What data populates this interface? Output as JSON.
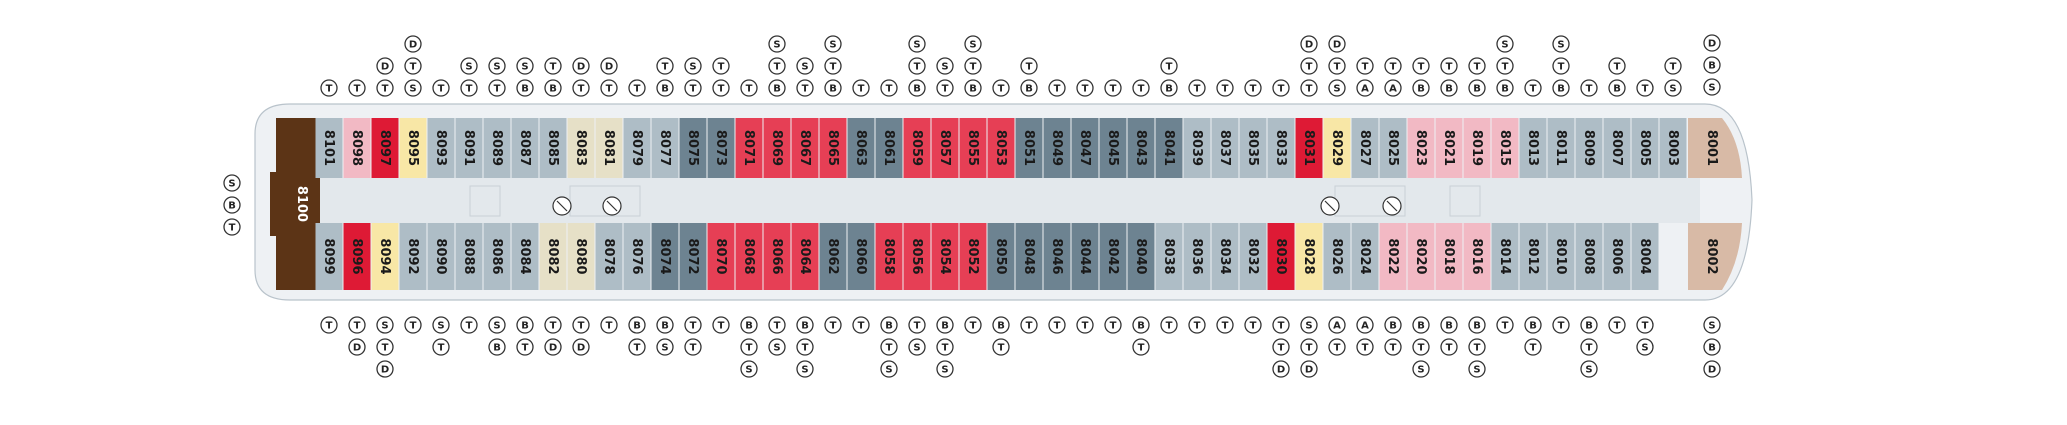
{
  "colors": {
    "light_blue": "#aebdc6",
    "dark_blue": "#6d8391",
    "red": "#de1a35",
    "pink_red": "#e63f55",
    "light_pink": "#f2b9c4",
    "yellow": "#f8e7a6",
    "beige": "#e6e0c7",
    "tan": "#d8baa6",
    "brown": "#5c3416",
    "hull": "#eef1f4",
    "corridor": "#e3e8ec"
  },
  "legend_left": [
    "S",
    "B",
    "T"
  ],
  "cabin_8100": "8100",
  "top_cabins": [
    {
      "num": "8101",
      "color": "light_blue",
      "sym": [
        "T"
      ]
    },
    {
      "num": "8098",
      "color": "light_pink",
      "sym": [
        "T"
      ]
    },
    {
      "num": "8097",
      "color": "red",
      "sym": [
        "T",
        "D"
      ]
    },
    {
      "num": "8095",
      "color": "yellow",
      "sym": [
        "S",
        "T",
        "D"
      ]
    },
    {
      "num": "8093",
      "color": "light_blue",
      "sym": [
        "T"
      ]
    },
    {
      "num": "8091",
      "color": "light_blue",
      "sym": [
        "T",
        "S"
      ]
    },
    {
      "num": "8089",
      "color": "light_blue",
      "sym": [
        "T",
        "S"
      ]
    },
    {
      "num": "8087",
      "color": "light_blue",
      "sym": [
        "B",
        "S"
      ]
    },
    {
      "num": "8085",
      "color": "light_blue",
      "sym": [
        "B",
        "T"
      ]
    },
    {
      "num": "8083",
      "color": "beige",
      "sym": [
        "T",
        "D"
      ]
    },
    {
      "num": "8081",
      "color": "beige",
      "sym": [
        "T",
        "D"
      ]
    },
    {
      "num": "8079",
      "color": "light_blue",
      "sym": [
        "T"
      ]
    },
    {
      "num": "8077",
      "color": "light_blue",
      "sym": [
        "B",
        "T"
      ]
    },
    {
      "num": "8075",
      "color": "dark_blue",
      "sym": [
        "T",
        "S"
      ]
    },
    {
      "num": "8073",
      "color": "dark_blue",
      "sym": [
        "T",
        "T"
      ]
    },
    {
      "num": "8071",
      "color": "pink_red",
      "sym": [
        "T"
      ]
    },
    {
      "num": "8069",
      "color": "pink_red",
      "sym": [
        "B",
        "T",
        "S"
      ]
    },
    {
      "num": "8067",
      "color": "pink_red",
      "sym": [
        "T",
        "S"
      ]
    },
    {
      "num": "8065",
      "color": "pink_red",
      "sym": [
        "B",
        "T",
        "S"
      ]
    },
    {
      "num": "8063",
      "color": "dark_blue",
      "sym": [
        "T"
      ]
    },
    {
      "num": "8061",
      "color": "dark_blue",
      "sym": [
        "T"
      ]
    },
    {
      "num": "8059",
      "color": "pink_red",
      "sym": [
        "B",
        "T",
        "S"
      ]
    },
    {
      "num": "8057",
      "color": "pink_red",
      "sym": [
        "T",
        "S"
      ]
    },
    {
      "num": "8055",
      "color": "pink_red",
      "sym": [
        "B",
        "T",
        "S"
      ]
    },
    {
      "num": "8053",
      "color": "pink_red",
      "sym": [
        "T"
      ]
    },
    {
      "num": "8051",
      "color": "dark_blue",
      "sym": [
        "B",
        "T"
      ]
    },
    {
      "num": "8049",
      "color": "dark_blue",
      "sym": [
        "T"
      ]
    },
    {
      "num": "8047",
      "color": "dark_blue",
      "sym": [
        "T"
      ]
    },
    {
      "num": "8045",
      "color": "dark_blue",
      "sym": [
        "T"
      ]
    },
    {
      "num": "8043",
      "color": "dark_blue",
      "sym": [
        "T"
      ]
    },
    {
      "num": "8041",
      "color": "dark_blue",
      "sym": [
        "B",
        "T"
      ]
    },
    {
      "num": "8039",
      "color": "light_blue",
      "sym": [
        "T"
      ]
    },
    {
      "num": "8037",
      "color": "light_blue",
      "sym": [
        "T"
      ]
    },
    {
      "num": "8035",
      "color": "light_blue",
      "sym": [
        "T"
      ]
    },
    {
      "num": "8033",
      "color": "light_blue",
      "sym": [
        "T"
      ]
    },
    {
      "num": "8031",
      "color": "red",
      "sym": [
        "T",
        "T",
        "D"
      ]
    },
    {
      "num": "8029",
      "color": "yellow",
      "sym": [
        "S",
        "T",
        "D"
      ]
    },
    {
      "num": "8027",
      "color": "light_blue",
      "sym": [
        "A",
        "T"
      ]
    },
    {
      "num": "8025",
      "color": "light_blue",
      "sym": [
        "A",
        "T"
      ]
    },
    {
      "num": "8023",
      "color": "light_pink",
      "sym": [
        "B",
        "T"
      ]
    },
    {
      "num": "8021",
      "color": "light_pink",
      "sym": [
        "B",
        "T"
      ]
    },
    {
      "num": "8019",
      "color": "light_pink",
      "sym": [
        "B",
        "T"
      ]
    },
    {
      "num": "8015",
      "color": "light_pink",
      "sym": [
        "B",
        "T",
        "S"
      ]
    },
    {
      "num": "8013",
      "color": "light_blue",
      "sym": [
        "T"
      ]
    },
    {
      "num": "8011",
      "color": "light_blue",
      "sym": [
        "B",
        "T",
        "S"
      ]
    },
    {
      "num": "8009",
      "color": "light_blue",
      "sym": [
        "T"
      ]
    },
    {
      "num": "8007",
      "color": "light_blue",
      "sym": [
        "B",
        "T"
      ]
    },
    {
      "num": "8005",
      "color": "light_blue",
      "sym": [
        "T"
      ]
    },
    {
      "num": "8003",
      "color": "light_blue",
      "sym": [
        "S",
        "T"
      ]
    }
  ],
  "bottom_cabins": [
    {
      "num": "8099",
      "color": "light_blue",
      "sym": [
        "T"
      ]
    },
    {
      "num": "8096",
      "color": "red",
      "sym": [
        "T",
        "D"
      ]
    },
    {
      "num": "8094",
      "color": "yellow",
      "sym": [
        "S",
        "T",
        "D"
      ]
    },
    {
      "num": "8092",
      "color": "light_blue",
      "sym": [
        "T"
      ]
    },
    {
      "num": "8090",
      "color": "light_blue",
      "sym": [
        "S",
        "T"
      ]
    },
    {
      "num": "8088",
      "color": "light_blue",
      "sym": [
        "T"
      ]
    },
    {
      "num": "8086",
      "color": "light_blue",
      "sym": [
        "S",
        "B"
      ]
    },
    {
      "num": "8084",
      "color": "light_blue",
      "sym": [
        "B",
        "T"
      ]
    },
    {
      "num": "8082",
      "color": "beige",
      "sym": [
        "T",
        "D"
      ]
    },
    {
      "num": "8080",
      "color": "beige",
      "sym": [
        "T",
        "D"
      ]
    },
    {
      "num": "8078",
      "color": "light_blue",
      "sym": [
        "T"
      ]
    },
    {
      "num": "8076",
      "color": "light_blue",
      "sym": [
        "B",
        "T"
      ]
    },
    {
      "num": "8074",
      "color": "dark_blue",
      "sym": [
        "B",
        "S"
      ]
    },
    {
      "num": "8072",
      "color": "dark_blue",
      "sym": [
        "T",
        "T"
      ]
    },
    {
      "num": "8070",
      "color": "pink_red",
      "sym": [
        "T"
      ]
    },
    {
      "num": "8068",
      "color": "pink_red",
      "sym": [
        "B",
        "T",
        "S"
      ]
    },
    {
      "num": "8066",
      "color": "pink_red",
      "sym": [
        "T",
        "S"
      ]
    },
    {
      "num": "8064",
      "color": "pink_red",
      "sym": [
        "B",
        "T",
        "S"
      ]
    },
    {
      "num": "8062",
      "color": "dark_blue",
      "sym": [
        "T"
      ]
    },
    {
      "num": "8060",
      "color": "dark_blue",
      "sym": [
        "T"
      ]
    },
    {
      "num": "8058",
      "color": "pink_red",
      "sym": [
        "B",
        "T",
        "S"
      ]
    },
    {
      "num": "8056",
      "color": "pink_red",
      "sym": [
        "T",
        "S"
      ]
    },
    {
      "num": "8054",
      "color": "pink_red",
      "sym": [
        "B",
        "T",
        "S"
      ]
    },
    {
      "num": "8052",
      "color": "pink_red",
      "sym": [
        "T"
      ]
    },
    {
      "num": "8050",
      "color": "dark_blue",
      "sym": [
        "B",
        "T"
      ]
    },
    {
      "num": "8048",
      "color": "dark_blue",
      "sym": [
        "T"
      ]
    },
    {
      "num": "8046",
      "color": "dark_blue",
      "sym": [
        "T"
      ]
    },
    {
      "num": "8044",
      "color": "dark_blue",
      "sym": [
        "T"
      ]
    },
    {
      "num": "8042",
      "color": "dark_blue",
      "sym": [
        "T"
      ]
    },
    {
      "num": "8040",
      "color": "dark_blue",
      "sym": [
        "B",
        "T"
      ]
    },
    {
      "num": "8038",
      "color": "light_blue",
      "sym": [
        "T"
      ]
    },
    {
      "num": "8036",
      "color": "light_blue",
      "sym": [
        "T"
      ]
    },
    {
      "num": "8034",
      "color": "light_blue",
      "sym": [
        "T"
      ]
    },
    {
      "num": "8032",
      "color": "light_blue",
      "sym": [
        "T"
      ]
    },
    {
      "num": "8030",
      "color": "red",
      "sym": [
        "T",
        "T",
        "D"
      ]
    },
    {
      "num": "8028",
      "color": "yellow",
      "sym": [
        "S",
        "T",
        "D"
      ]
    },
    {
      "num": "8026",
      "color": "light_blue",
      "sym": [
        "A",
        "T"
      ]
    },
    {
      "num": "8024",
      "color": "light_blue",
      "sym": [
        "A",
        "T"
      ]
    },
    {
      "num": "8022",
      "color": "light_pink",
      "sym": [
        "B",
        "T"
      ]
    },
    {
      "num": "8020",
      "color": "light_pink",
      "sym": [
        "B",
        "T",
        "S"
      ]
    },
    {
      "num": "8018",
      "color": "light_pink",
      "sym": [
        "B",
        "T"
      ]
    },
    {
      "num": "8016",
      "color": "light_pink",
      "sym": [
        "B",
        "T",
        "S"
      ]
    },
    {
      "num": "8014",
      "color": "light_blue",
      "sym": [
        "T"
      ]
    },
    {
      "num": "8012",
      "color": "light_blue",
      "sym": [
        "B",
        "T"
      ]
    },
    {
      "num": "8010",
      "color": "light_blue",
      "sym": [
        "T"
      ]
    },
    {
      "num": "8008",
      "color": "light_blue",
      "sym": [
        "B",
        "T",
        "S"
      ]
    },
    {
      "num": "8006",
      "color": "light_blue",
      "sym": [
        "T"
      ]
    },
    {
      "num": "8004",
      "color": "light_blue",
      "sym": [
        "T",
        "S"
      ]
    }
  ],
  "forward_cabins": [
    {
      "num": "8001",
      "color": "tan",
      "sym": [
        "D",
        "B",
        "S"
      ]
    },
    {
      "num": "8002",
      "color": "tan",
      "sym": [
        "S",
        "B",
        "D"
      ]
    }
  ]
}
